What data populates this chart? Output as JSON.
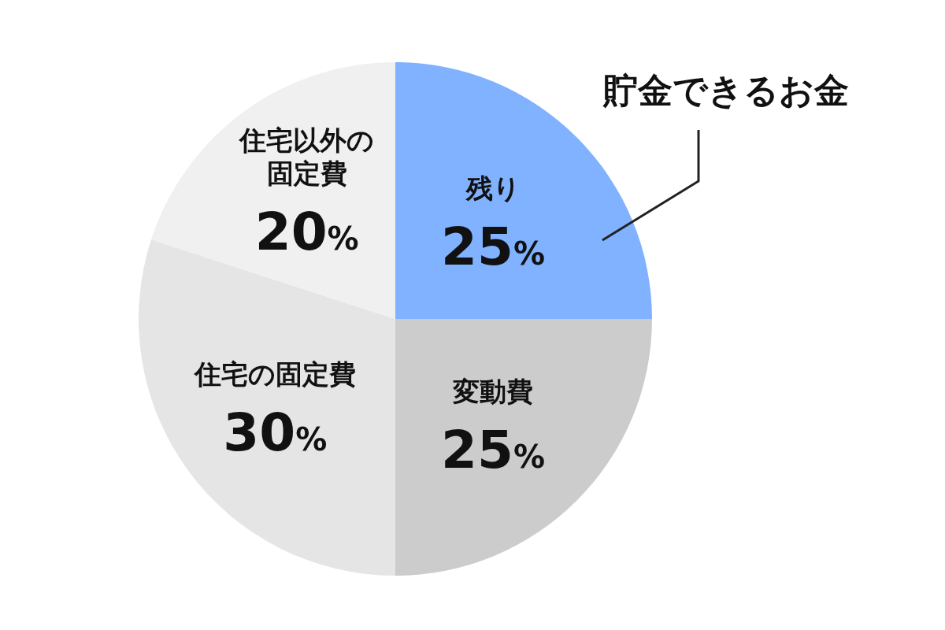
{
  "chart_data": {
    "type": "pie",
    "categories": [
      "残り",
      "変動費",
      "住宅の固定費",
      "住宅以外の固定費"
    ],
    "values": [
      25,
      25,
      30,
      20
    ],
    "colors": [
      "#80b2ff",
      "#cccccc",
      "#e5e5e5",
      "#f0f0f0"
    ],
    "value_labels": [
      "25%",
      "25%",
      "30%",
      "20%"
    ],
    "annotations": [
      "貯金できるお金"
    ],
    "legend": false
  }
}
